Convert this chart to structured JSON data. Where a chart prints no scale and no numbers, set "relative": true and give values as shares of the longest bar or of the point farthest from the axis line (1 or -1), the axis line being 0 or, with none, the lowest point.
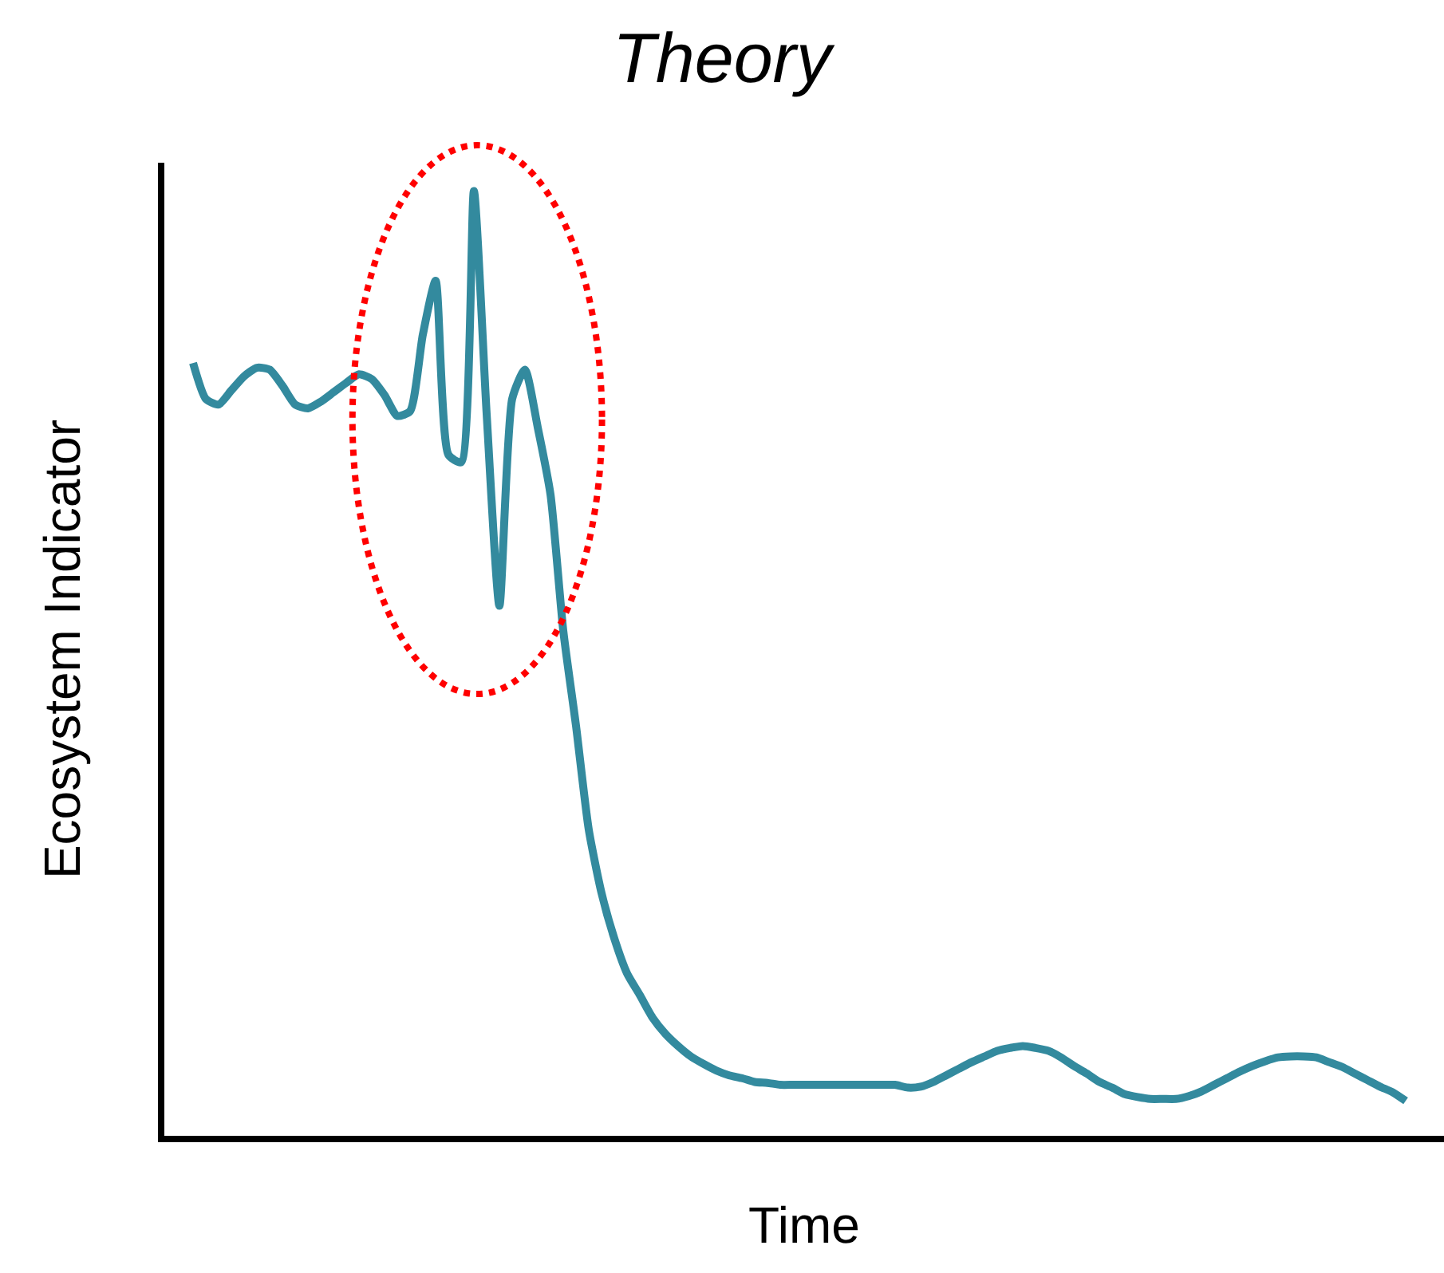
{
  "chart_data": {
    "type": "line",
    "title": "Theory",
    "xlabel": "Time",
    "ylabel": "Ecosystem Indicator",
    "relative": true,
    "line_style": "solid",
    "marker": "none",
    "categories": [
      null,
      null,
      null,
      null,
      null,
      null,
      null,
      null,
      null,
      null,
      null,
      null,
      null,
      null,
      null,
      null,
      null,
      null,
      null,
      null,
      null,
      null,
      null,
      null,
      null,
      null,
      null,
      null,
      null,
      null,
      null,
      null,
      null,
      null,
      null,
      null,
      null,
      null,
      null,
      null,
      null,
      null,
      null,
      null,
      null,
      null,
      null,
      null,
      null,
      null,
      null,
      null,
      null,
      null,
      null,
      null,
      null,
      null,
      null,
      null,
      null,
      null,
      null,
      null,
      null,
      null,
      null,
      null,
      null,
      null,
      null,
      null,
      null,
      null,
      null,
      null,
      null,
      null,
      null,
      null,
      null,
      null,
      null,
      null,
      null,
      null,
      null,
      null,
      null,
      null,
      null,
      null,
      null,
      null,
      null,
      null
    ],
    "series": [
      {
        "color": "#338a9e",
        "values": [
          0.818,
          0.78,
          0.774,
          0.789,
          0.804,
          0.813,
          0.811,
          0.794,
          0.774,
          0.77,
          0.777,
          0.787,
          0.797,
          0.806,
          0.801,
          0.784,
          0.762,
          0.767,
          0.848,
          0.905,
          0.721,
          0.713,
          1,
          0.764,
          0.561,
          0.78,
          0.811,
          0.75,
          0.679,
          0.535,
          0.434,
          0.324,
          0.257,
          0.209,
          0.172,
          0.149,
          0.125,
          0.108,
          0.095,
          0.084,
          0.076,
          0.069,
          0.064,
          0.061,
          0.057,
          0.056,
          0.054,
          0.054,
          0.054,
          0.054,
          0.054,
          0.054,
          0.054,
          0.054,
          0.054,
          0.054,
          0.051,
          0.052,
          0.057,
          0.064,
          0.071,
          0.078,
          0.084,
          0.09,
          0.093,
          0.095,
          0.093,
          0.09,
          0.083,
          0.074,
          0.066,
          0.057,
          0.051,
          0.044,
          0.041,
          0.039,
          0.039,
          0.039,
          0.042,
          0.047,
          0.054,
          0.061,
          0.068,
          0.074,
          0.079,
          0.083,
          0.084,
          0.084,
          0.083,
          0.078,
          0.073,
          0.066,
          0.059,
          0.052,
          0.046,
          0.037
        ]
      }
    ]
  }
}
